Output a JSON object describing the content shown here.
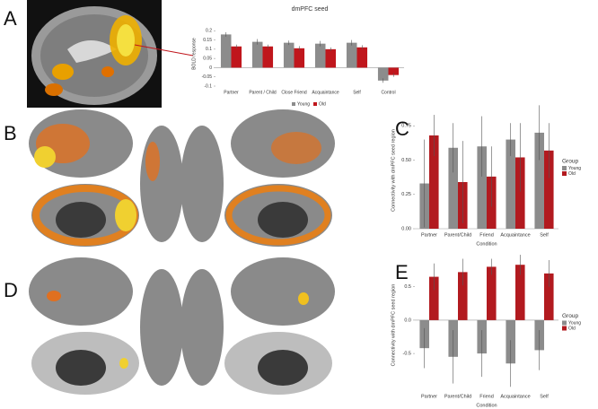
{
  "panel_labels": [
    "A",
    "B",
    "C",
    "D",
    "E"
  ],
  "chart_data": [
    {
      "type": "bar",
      "title": "dmPFC seed",
      "ylabel": "BOLD response",
      "categories": [
        "Partner",
        "Parent / Child",
        "Close Friend",
        "Acquaintance",
        "Self",
        "Control"
      ],
      "series": [
        {
          "name": "Young",
          "color": "#8c8c8c",
          "values": [
            0.18,
            0.14,
            0.135,
            0.13,
            0.135,
            -0.07
          ],
          "errors": [
            0.012,
            0.015,
            0.012,
            0.015,
            0.015,
            0.012
          ]
        },
        {
          "name": "Old",
          "color": "#c0161c",
          "values": [
            0.115,
            0.115,
            0.105,
            0.1,
            0.11,
            -0.04
          ],
          "errors": [
            0.01,
            0.01,
            0.012,
            0.01,
            0.012,
            0.01
          ]
        }
      ],
      "ylim": [
        -0.1,
        0.25
      ],
      "yticks": [
        -0.1,
        -0.05,
        0,
        0.05,
        0.1,
        0.15,
        0.2
      ],
      "legend": "bottom"
    },
    {
      "type": "bar",
      "xlabel": "Condition",
      "ylabel": "Connectivity with dmPFC seed region",
      "legend_title": "Group",
      "categories": [
        "Partner",
        "Parent/Child",
        "Friend",
        "Acquaintance",
        "Self"
      ],
      "series": [
        {
          "name": "Young",
          "color": "#8c8c8c",
          "values": [
            0.33,
            0.59,
            0.6,
            0.65,
            0.7
          ],
          "errors": [
            0.32,
            0.18,
            0.22,
            0.12,
            0.2
          ]
        },
        {
          "name": "Old",
          "color": "#b21a1f",
          "values": [
            0.68,
            0.34,
            0.38,
            0.52,
            0.57
          ],
          "errors": [
            0.15,
            0.3,
            0.22,
            0.25,
            0.2
          ]
        }
      ],
      "ylim": [
        0,
        0.85
      ],
      "yticks": [
        {
          "value": 0,
          "label": "0.00"
        },
        {
          "value": 0.25,
          "label": "0.25"
        },
        {
          "value": 0.5,
          "label": "0.50"
        },
        {
          "value": 0.75,
          "label": "0.75"
        }
      ],
      "legend": "right"
    },
    {
      "type": "bar",
      "xlabel": "Condition",
      "ylabel": "Connectivity with dmPFC seed region",
      "legend_title": "Group",
      "categories": [
        "Partner",
        "Parent/Child",
        "Friend",
        "Acquaintance",
        "Self"
      ],
      "series": [
        {
          "name": "Young",
          "color": "#8c8c8c",
          "values": [
            -0.42,
            -0.55,
            -0.5,
            -0.65,
            -0.45
          ],
          "errors": [
            0.3,
            0.4,
            0.35,
            0.35,
            0.3
          ]
        },
        {
          "name": "Old",
          "color": "#b21a1f",
          "values": [
            0.65,
            0.72,
            0.8,
            0.83,
            0.7
          ],
          "errors": [
            0.2,
            0.2,
            0.12,
            0.15,
            0.2
          ]
        }
      ],
      "ylim": [
        -1.05,
        0.9
      ],
      "yticks": [
        -0.5,
        {
          "value": 0,
          "label": "0.0"
        },
        0.5
      ],
      "legend": "right"
    }
  ]
}
